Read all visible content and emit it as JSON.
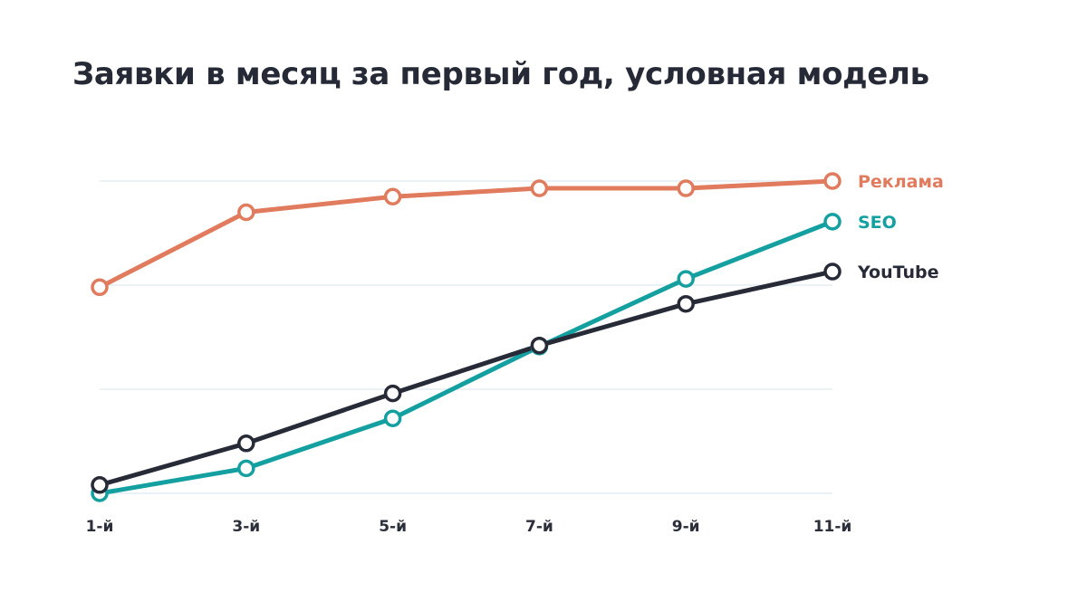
{
  "chart_data": {
    "type": "line",
    "title": "Заявки в месяц за первый год, условная модель",
    "xlabel": "",
    "ylabel": "",
    "categories": [
      "1-й",
      "3-й",
      "5-й",
      "7-й",
      "9-й",
      "11-й"
    ],
    "ylim": [
      0,
      3
    ],
    "grid": true,
    "legend": "end-of-line labels, right",
    "series": [
      {
        "name": "Реклама",
        "color": "#e07b5d",
        "values": [
          1.98,
          2.7,
          2.85,
          2.93,
          2.93,
          3.0
        ]
      },
      {
        "name": "SEO",
        "color": "#14a0a0",
        "values": [
          0.0,
          0.24,
          0.72,
          1.41,
          2.06,
          2.61
        ]
      },
      {
        "name": "YouTube",
        "color": "#272b37",
        "values": [
          0.08,
          0.48,
          0.96,
          1.42,
          1.82,
          2.13
        ]
      }
    ]
  }
}
